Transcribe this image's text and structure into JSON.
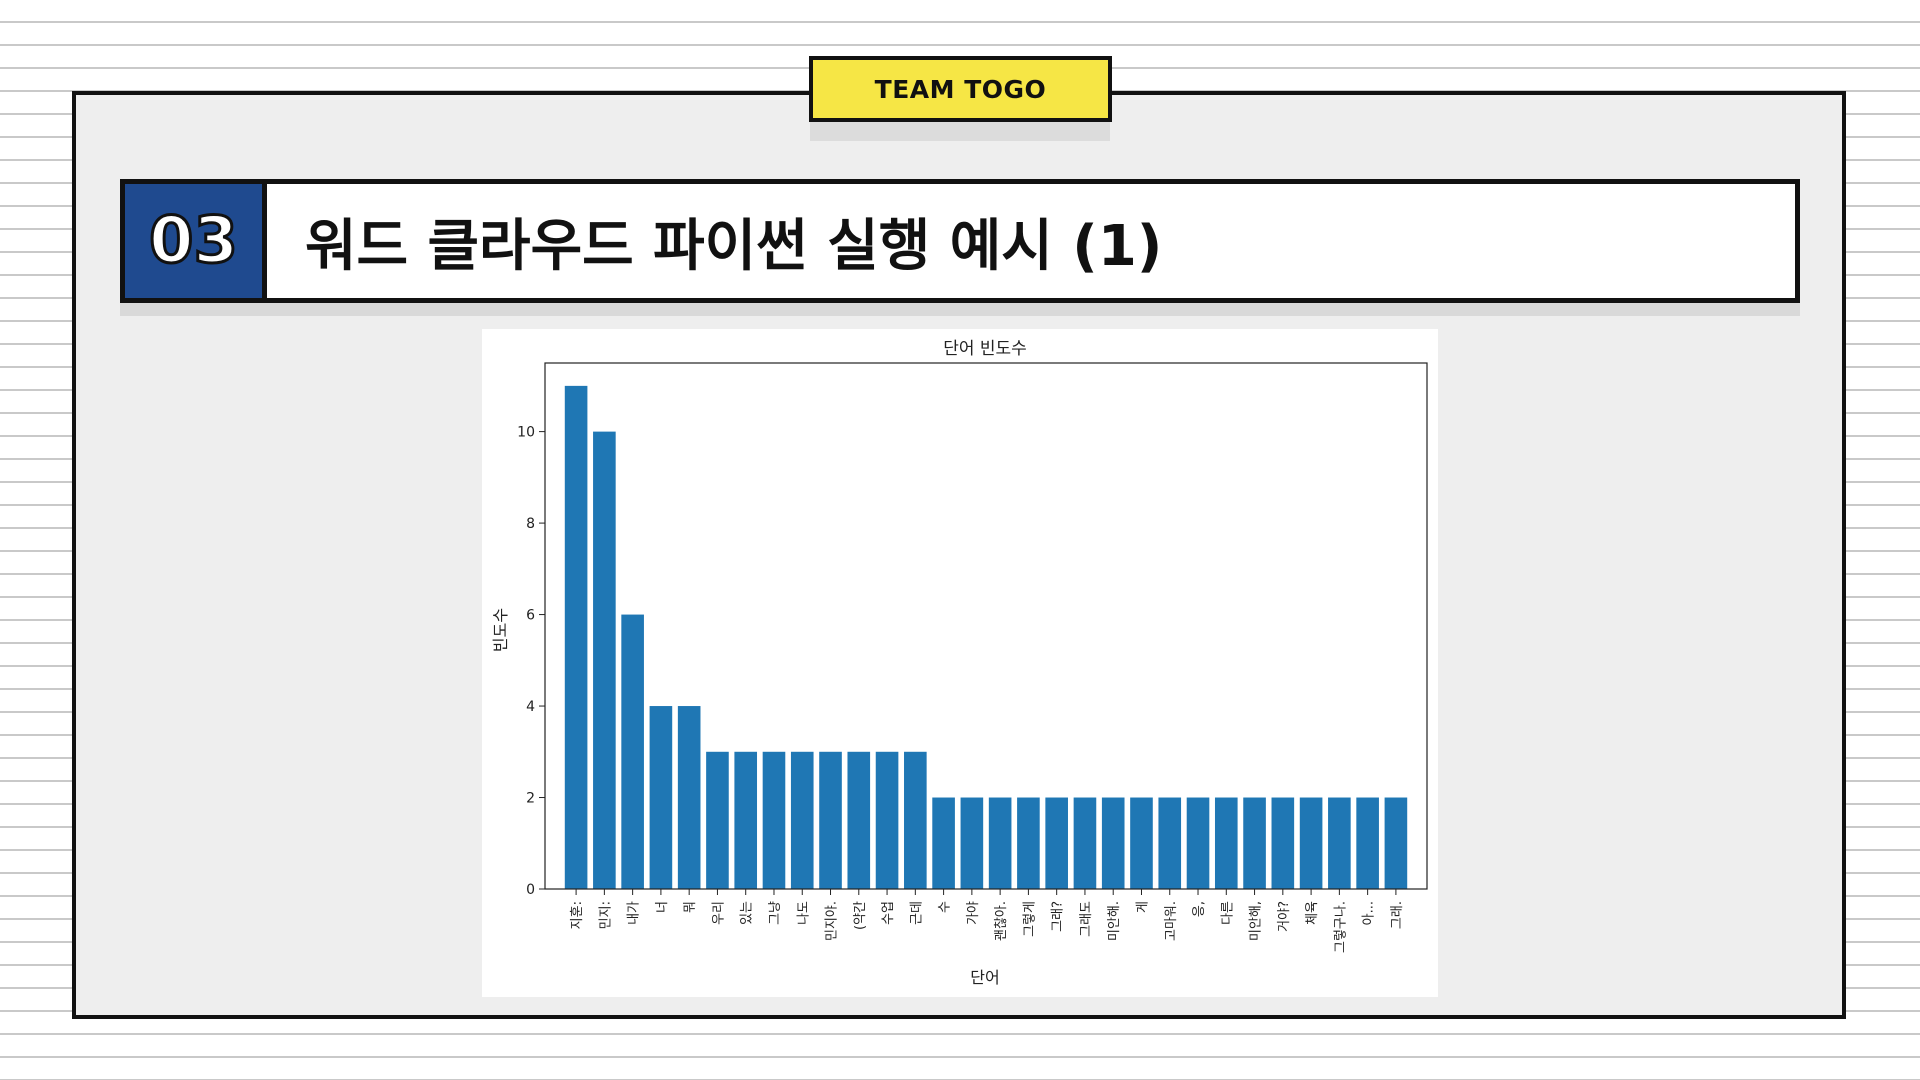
{
  "header": {
    "team_badge": "TEAM TOGO",
    "section_number": "03",
    "title": "워드 클라우드 파이썬 실행 예시 (1)"
  },
  "colors": {
    "bar": "#1f77b4",
    "badge": "#f6e645",
    "section": "#1f4a8f"
  },
  "chart_data": {
    "type": "bar",
    "title": "단어 빈도수",
    "xlabel": "단어",
    "ylabel": "빈도수",
    "ylim": [
      0,
      11.5
    ],
    "yticks": [
      0,
      2,
      4,
      6,
      8,
      10
    ],
    "grid": false,
    "categories": [
      "지훈:",
      "민지:",
      "내가",
      "너",
      "뭐",
      "우리",
      "있는",
      "그냥",
      "나도",
      "민지야.",
      "(약간",
      "수업",
      "근데",
      "수",
      "가야",
      "괜찮아.",
      "그렇게",
      "그래?",
      "그래도",
      "미안해.",
      "게",
      "고마워.",
      "응,",
      "다른",
      "미안해,",
      "거야?",
      "체육",
      "그렇구나.",
      "아...",
      "그래."
    ],
    "values": [
      11,
      10,
      6,
      4,
      4,
      3,
      3,
      3,
      3,
      3,
      3,
      3,
      3,
      2,
      2,
      2,
      2,
      2,
      2,
      2,
      2,
      2,
      2,
      2,
      2,
      2,
      2,
      2,
      2,
      2
    ]
  }
}
